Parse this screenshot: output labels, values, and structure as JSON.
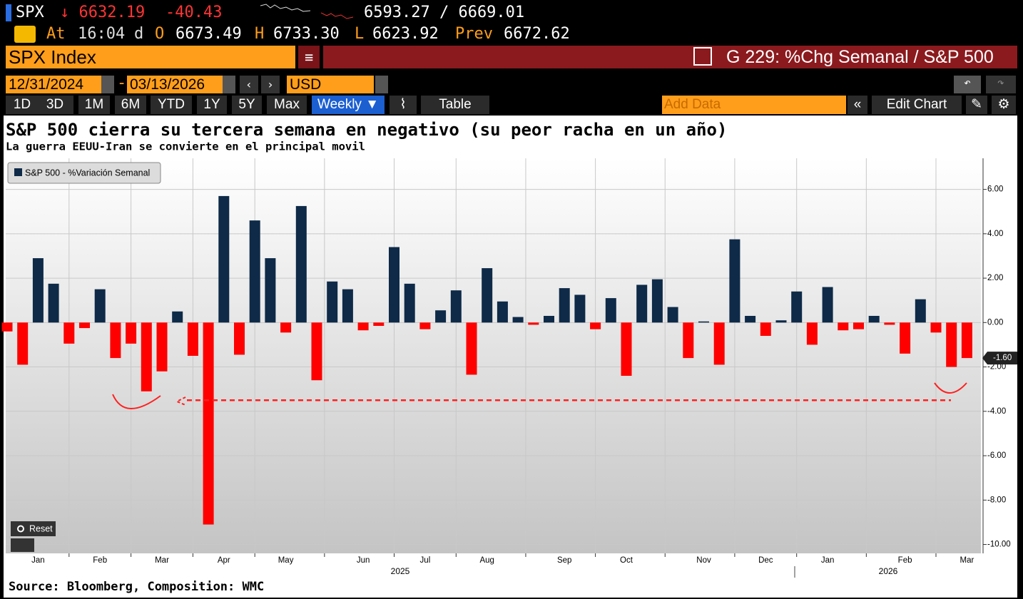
{
  "header": {
    "ticker": "SPX",
    "price": "↓ 6632.19",
    "change": "-40.43",
    "range": "6593.27 / 6669.01",
    "at_label": "At",
    "time": "16:04",
    "d_label": "d",
    "open_label": "O",
    "open": "6673.49",
    "high_label": "H",
    "high": "6733.30",
    "low_label": "L",
    "low": "6623.92",
    "prev_label": "Prev",
    "prev": "6672.62"
  },
  "toolbar": {
    "security": "SPX Index",
    "function_title": "G 229: %Chg Semanal / S&P 500",
    "start_date": "12/31/2024",
    "date_sep": "-",
    "end_date": "03/13/2026",
    "currency": "USD",
    "periods": [
      "1D",
      "3D",
      "1M",
      "6M",
      "YTD",
      "1Y",
      "5Y",
      "Max"
    ],
    "frequency": "Weekly ▼",
    "table": "Table",
    "add_data": "Add Data",
    "edit_chart": "Edit Chart",
    "reset": "Reset"
  },
  "chart_data": {
    "type": "bar",
    "title": "S&P 500 cierra su tercera semana en negativo (su peor racha en un año)",
    "subtitle": "La guerra EEUU-Iran se convierte en el principal movil",
    "source": "Source: Bloomberg, Composition: WMC",
    "categories": [
      null,
      null,
      "Jan",
      null,
      null,
      null,
      "Feb",
      null,
      null,
      null,
      "Mar",
      null,
      null,
      null,
      "Apr",
      null,
      null,
      null,
      "May",
      null,
      null,
      null,
      null,
      "Jun",
      null,
      null,
      null,
      "Jul",
      null,
      null,
      null,
      "Aug",
      null,
      null,
      null,
      null,
      "Sep",
      null,
      null,
      null,
      "Oct",
      null,
      null,
      null,
      null,
      "Nov",
      null,
      null,
      null,
      "Dec",
      null,
      null,
      null,
      "Jan",
      null,
      null,
      null,
      null,
      "Feb",
      null,
      null,
      null,
      "Mar"
    ],
    "x_group_labels": [
      "2025",
      "2026"
    ],
    "series": [
      {
        "name": "S&P 500 - %Variación Semanal",
        "color": "#0e2a48",
        "negative_color": "#ff0000",
        "values": [
          -0.4,
          -1.9,
          2.9,
          1.75,
          -0.95,
          -0.25,
          1.5,
          -1.6,
          -0.95,
          -3.1,
          -2.2,
          0.5,
          -1.5,
          -9.1,
          5.7,
          -1.45,
          4.6,
          2.9,
          -0.45,
          5.25,
          -2.6,
          1.85,
          1.5,
          -0.35,
          -0.15,
          3.4,
          1.75,
          -0.3,
          0.55,
          1.45,
          -2.35,
          2.45,
          0.95,
          0.25,
          -0.1,
          0.3,
          1.55,
          1.25,
          -0.3,
          1.1,
          -2.4,
          1.7,
          1.95,
          0.7,
          -1.6,
          0.05,
          -1.9,
          3.75,
          0.3,
          -0.6,
          0.1,
          1.4,
          -1.0,
          1.6,
          -0.35,
          -0.3,
          0.3,
          -0.1,
          -1.4,
          1.05,
          -0.45,
          -2.0,
          -1.6
        ],
        "value_labels": [
          null,
          null,
          null,
          null,
          null,
          null,
          null,
          null,
          null,
          null,
          null,
          null,
          null,
          null,
          null,
          null,
          null,
          null,
          null,
          null,
          null,
          null,
          null,
          null,
          null,
          null,
          null,
          null,
          null,
          null,
          null,
          null,
          null,
          null,
          null,
          null,
          null,
          null,
          null,
          null,
          null,
          null,
          null,
          null,
          null,
          null,
          null,
          null,
          null,
          null,
          null,
          null,
          null,
          null,
          null,
          null,
          null,
          null,
          null,
          null,
          null,
          null,
          "-1.60"
        ]
      }
    ],
    "ylim": [
      -10.4,
      7.4
    ],
    "yticks": [
      {
        "value": -10,
        "label": "-10.00"
      },
      {
        "value": -8,
        "label": "-8.00"
      },
      {
        "value": -6,
        "label": "-6.00"
      },
      {
        "value": -4,
        "label": "-4.00"
      },
      {
        "value": -2,
        "label": "-2.00"
      },
      {
        "value": 0,
        "label": "0.00"
      },
      {
        "value": 2,
        "label": "2.00"
      },
      {
        "value": 4,
        "label": "4.00"
      },
      {
        "value": 6,
        "label": "6.00"
      }
    ],
    "reference_line": -3.5,
    "reference_color": "#ff2020",
    "grid": true,
    "legend": "upper left"
  }
}
